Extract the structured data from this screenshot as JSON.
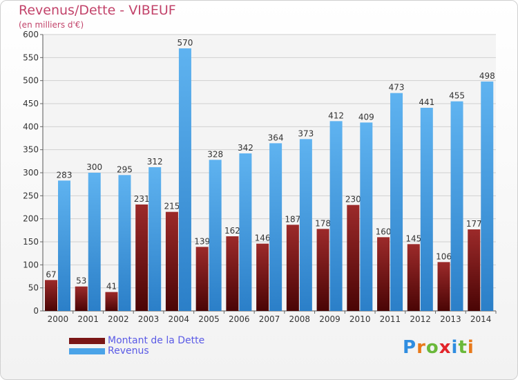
{
  "header": {
    "title": "Revenus/Dette - VIBEUF",
    "subtitle": "(en milliers d'€)"
  },
  "legend": {
    "items": [
      {
        "label": "Montant de la Dette",
        "color": "#7a1616"
      },
      {
        "label": "Revenus",
        "color": "#4aa3e8"
      }
    ]
  },
  "logo": {
    "text": "Proxiti",
    "letters": [
      "P",
      "r",
      "o",
      "x",
      "i",
      "t",
      "i"
    ],
    "colors": [
      "#2f8de0",
      "#e8791a",
      "#6ab83a",
      "#e2242a",
      "#2f8de0",
      "#6ab83a",
      "#e8791a"
    ]
  },
  "chart_data": {
    "type": "bar",
    "categories": [
      "2000",
      "2001",
      "2002",
      "2003",
      "2004",
      "2005",
      "2006",
      "2007",
      "2008",
      "2009",
      "2010",
      "2011",
      "2012",
      "2013",
      "2014"
    ],
    "series": [
      {
        "name": "Montant de la Dette",
        "values": [
          67,
          53,
          41,
          231,
          215,
          139,
          162,
          146,
          187,
          178,
          230,
          160,
          145,
          106,
          177
        ],
        "color": "#7a1616"
      },
      {
        "name": "Revenus",
        "values": [
          283,
          300,
          295,
          312,
          570,
          328,
          342,
          364,
          373,
          412,
          409,
          473,
          441,
          455,
          498
        ],
        "color": "#4aa3e8"
      }
    ],
    "ylim": [
      0,
      600
    ],
    "yticks": [
      0,
      50,
      100,
      150,
      200,
      250,
      300,
      350,
      400,
      450,
      500,
      550,
      600
    ],
    "grid": true,
    "xlabel": "",
    "ylabel": "",
    "legend_position": "bottom-left"
  }
}
